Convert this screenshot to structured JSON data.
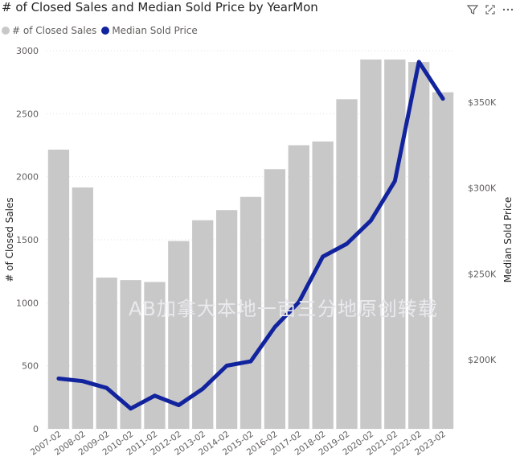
{
  "colors": {
    "bars": "#c8c8c8",
    "line": "#12239e",
    "grid": "#e1e1e1",
    "text": "#605e5c"
  },
  "header": {
    "icons": [
      "filter-icon",
      "focus-mode-icon",
      "more-options-icon"
    ]
  },
  "watermark": "AB加拿大本地一亩三分地原创转载",
  "chart_data": {
    "type": "bar",
    "title": "# of Closed Sales and Median Sold Price by YearMon",
    "legend": [
      "# of Closed Sales",
      "Median Sold Price"
    ],
    "legend_position": "top-left",
    "xlabel": "",
    "ylabel": "# of Closed Sales",
    "y2label": "Median Sold Price",
    "categories": [
      "2007-02",
      "2008-02",
      "2009-02",
      "2010-02",
      "2011-02",
      "2012-02",
      "2013-02",
      "2014-02",
      "2015-02",
      "2016-02",
      "2017-02",
      "2018-02",
      "2019-02",
      "2020-02",
      "2021-02",
      "2022-02",
      "2023-02"
    ],
    "yticks": [
      "0",
      "500",
      "1000",
      "1500",
      "2000",
      "2500",
      "3000"
    ],
    "y2ticks": [
      "$200K",
      "$250K",
      "$300K",
      "$350K"
    ],
    "ylim": [
      0,
      3000
    ],
    "y2lim_approx": [
      150000,
      370000
    ],
    "grid": true,
    "series": [
      {
        "name": "# of Closed Sales",
        "type": "bar",
        "axis": "left",
        "values": [
          2215,
          1915,
          1200,
          1180,
          1165,
          1490,
          1655,
          1735,
          1840,
          2060,
          2250,
          2280,
          2615,
          2930,
          2930,
          2910,
          2670
        ]
      },
      {
        "name": "Median Sold Price",
        "type": "line",
        "axis": "right",
        "values": [
          189000,
          187500,
          183500,
          171500,
          179000,
          173500,
          183000,
          196500,
          199000,
          219000,
          233500,
          260000,
          267500,
          281000,
          304000,
          373500,
          352000
        ]
      }
    ]
  }
}
